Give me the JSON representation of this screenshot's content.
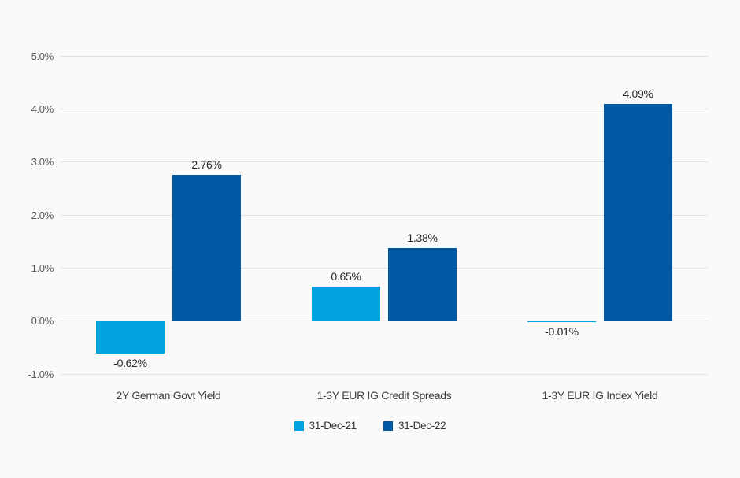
{
  "chart_data": {
    "type": "bar",
    "title": "",
    "categories": [
      "2Y German Govt Yield",
      "1-3Y EUR IG Credit Spreads",
      "1-3Y EUR IG Index Yield"
    ],
    "series": [
      {
        "name": "31-Dec-21",
        "color": "#00A3E0",
        "values": [
          -0.62,
          0.65,
          -0.01
        ],
        "data_labels": [
          "-0.62%",
          "0.65%",
          "-0.01%"
        ]
      },
      {
        "name": "31-Dec-22",
        "color": "#0059A4",
        "values": [
          2.76,
          1.38,
          4.09
        ],
        "data_labels": [
          "2.76%",
          "1.38%",
          "4.09%"
        ]
      }
    ],
    "ylim": [
      -1,
      5
    ],
    "y_tick_step": 1,
    "y_tick_labels": [
      "5.0%",
      "4.0%",
      "3.0%",
      "2.0%",
      "1.0%",
      "0.0%",
      "-1.0%"
    ],
    "grid": true,
    "legend_position": "bottom"
  },
  "colors": {
    "background": "#FAFAFA",
    "gridline": "#E0E0E0",
    "tick_text": "#595959",
    "category_text": "#404040",
    "data_label_text": "#262626",
    "legend_text": "#333333"
  }
}
